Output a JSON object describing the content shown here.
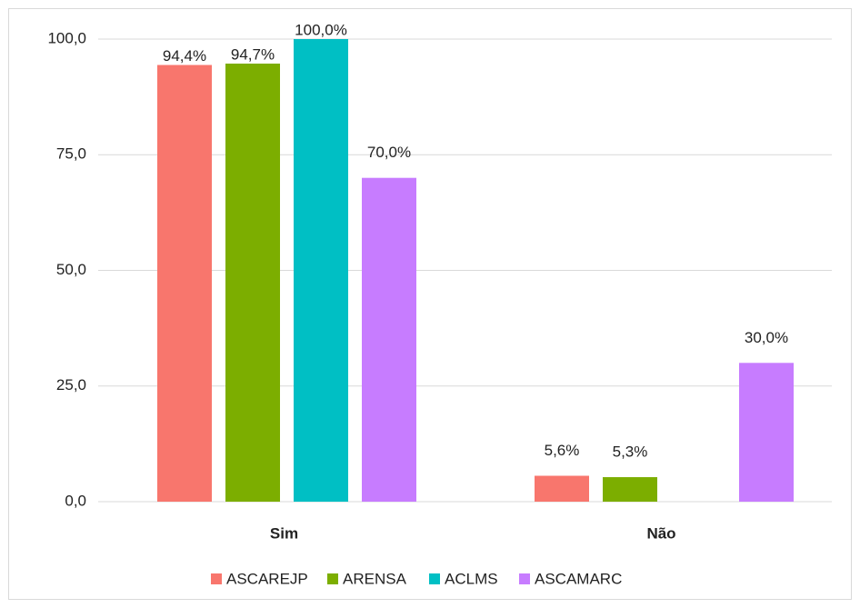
{
  "chart_data": {
    "type": "bar",
    "categories": [
      "Sim",
      "Não"
    ],
    "series": [
      {
        "name": "ASCAREJP",
        "color": "#f8766d",
        "values": [
          94.4,
          5.6
        ],
        "value_labels": [
          "94,4%",
          "5,6%"
        ]
      },
      {
        "name": "ARENSA",
        "color": "#7cae00",
        "values": [
          94.7,
          5.3
        ],
        "value_labels": [
          "94,7%",
          "5,3%"
        ]
      },
      {
        "name": "ACLMS",
        "color": "#00bfc4",
        "values": [
          100,
          null
        ],
        "value_labels": [
          "100,0%",
          null
        ]
      },
      {
        "name": "ASCAMARC",
        "color": "#c77cff",
        "values": [
          70,
          30
        ],
        "value_labels": [
          "70,0%",
          "30,0%"
        ]
      }
    ],
    "ylim": [
      0,
      100
    ],
    "yticks": [
      {
        "value": 0,
        "label": "0,0"
      },
      {
        "value": 25,
        "label": "25,0"
      },
      {
        "value": 50,
        "label": "50,0"
      },
      {
        "value": 75,
        "label": "75,0"
      },
      {
        "value": 100,
        "label": "100,0"
      }
    ],
    "grid": true,
    "legend": "bottom"
  }
}
